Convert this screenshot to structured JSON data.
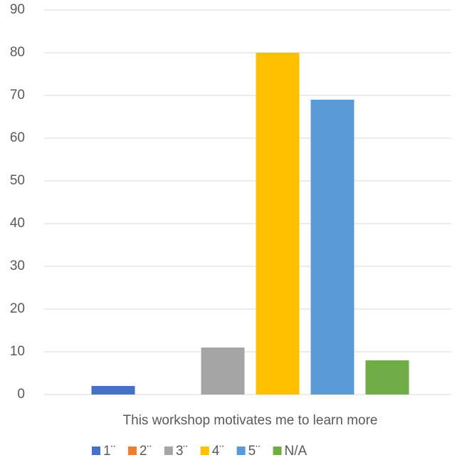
{
  "chart_data": {
    "type": "bar",
    "categories": [
      "This workshop motivates me to learn more"
    ],
    "series": [
      {
        "name": "1¨",
        "color": "#4472c4",
        "values": [
          2
        ]
      },
      {
        "name": "2¨",
        "color": "#ed7d31",
        "values": [
          0
        ]
      },
      {
        "name": "3¨",
        "color": "#a5a5a5",
        "values": [
          11
        ]
      },
      {
        "name": "4¨",
        "color": "#ffc000",
        "values": [
          80
        ]
      },
      {
        "name": "5¨",
        "color": "#5b9bd5",
        "values": [
          69
        ]
      },
      {
        "name": "N/A",
        "color": "#70ad47",
        "values": [
          8
        ]
      }
    ],
    "ylim": [
      0,
      90
    ],
    "yticks": [
      0,
      10,
      20,
      30,
      40,
      50,
      60,
      70,
      80,
      90
    ],
    "grid": true,
    "legend": "bottom"
  }
}
